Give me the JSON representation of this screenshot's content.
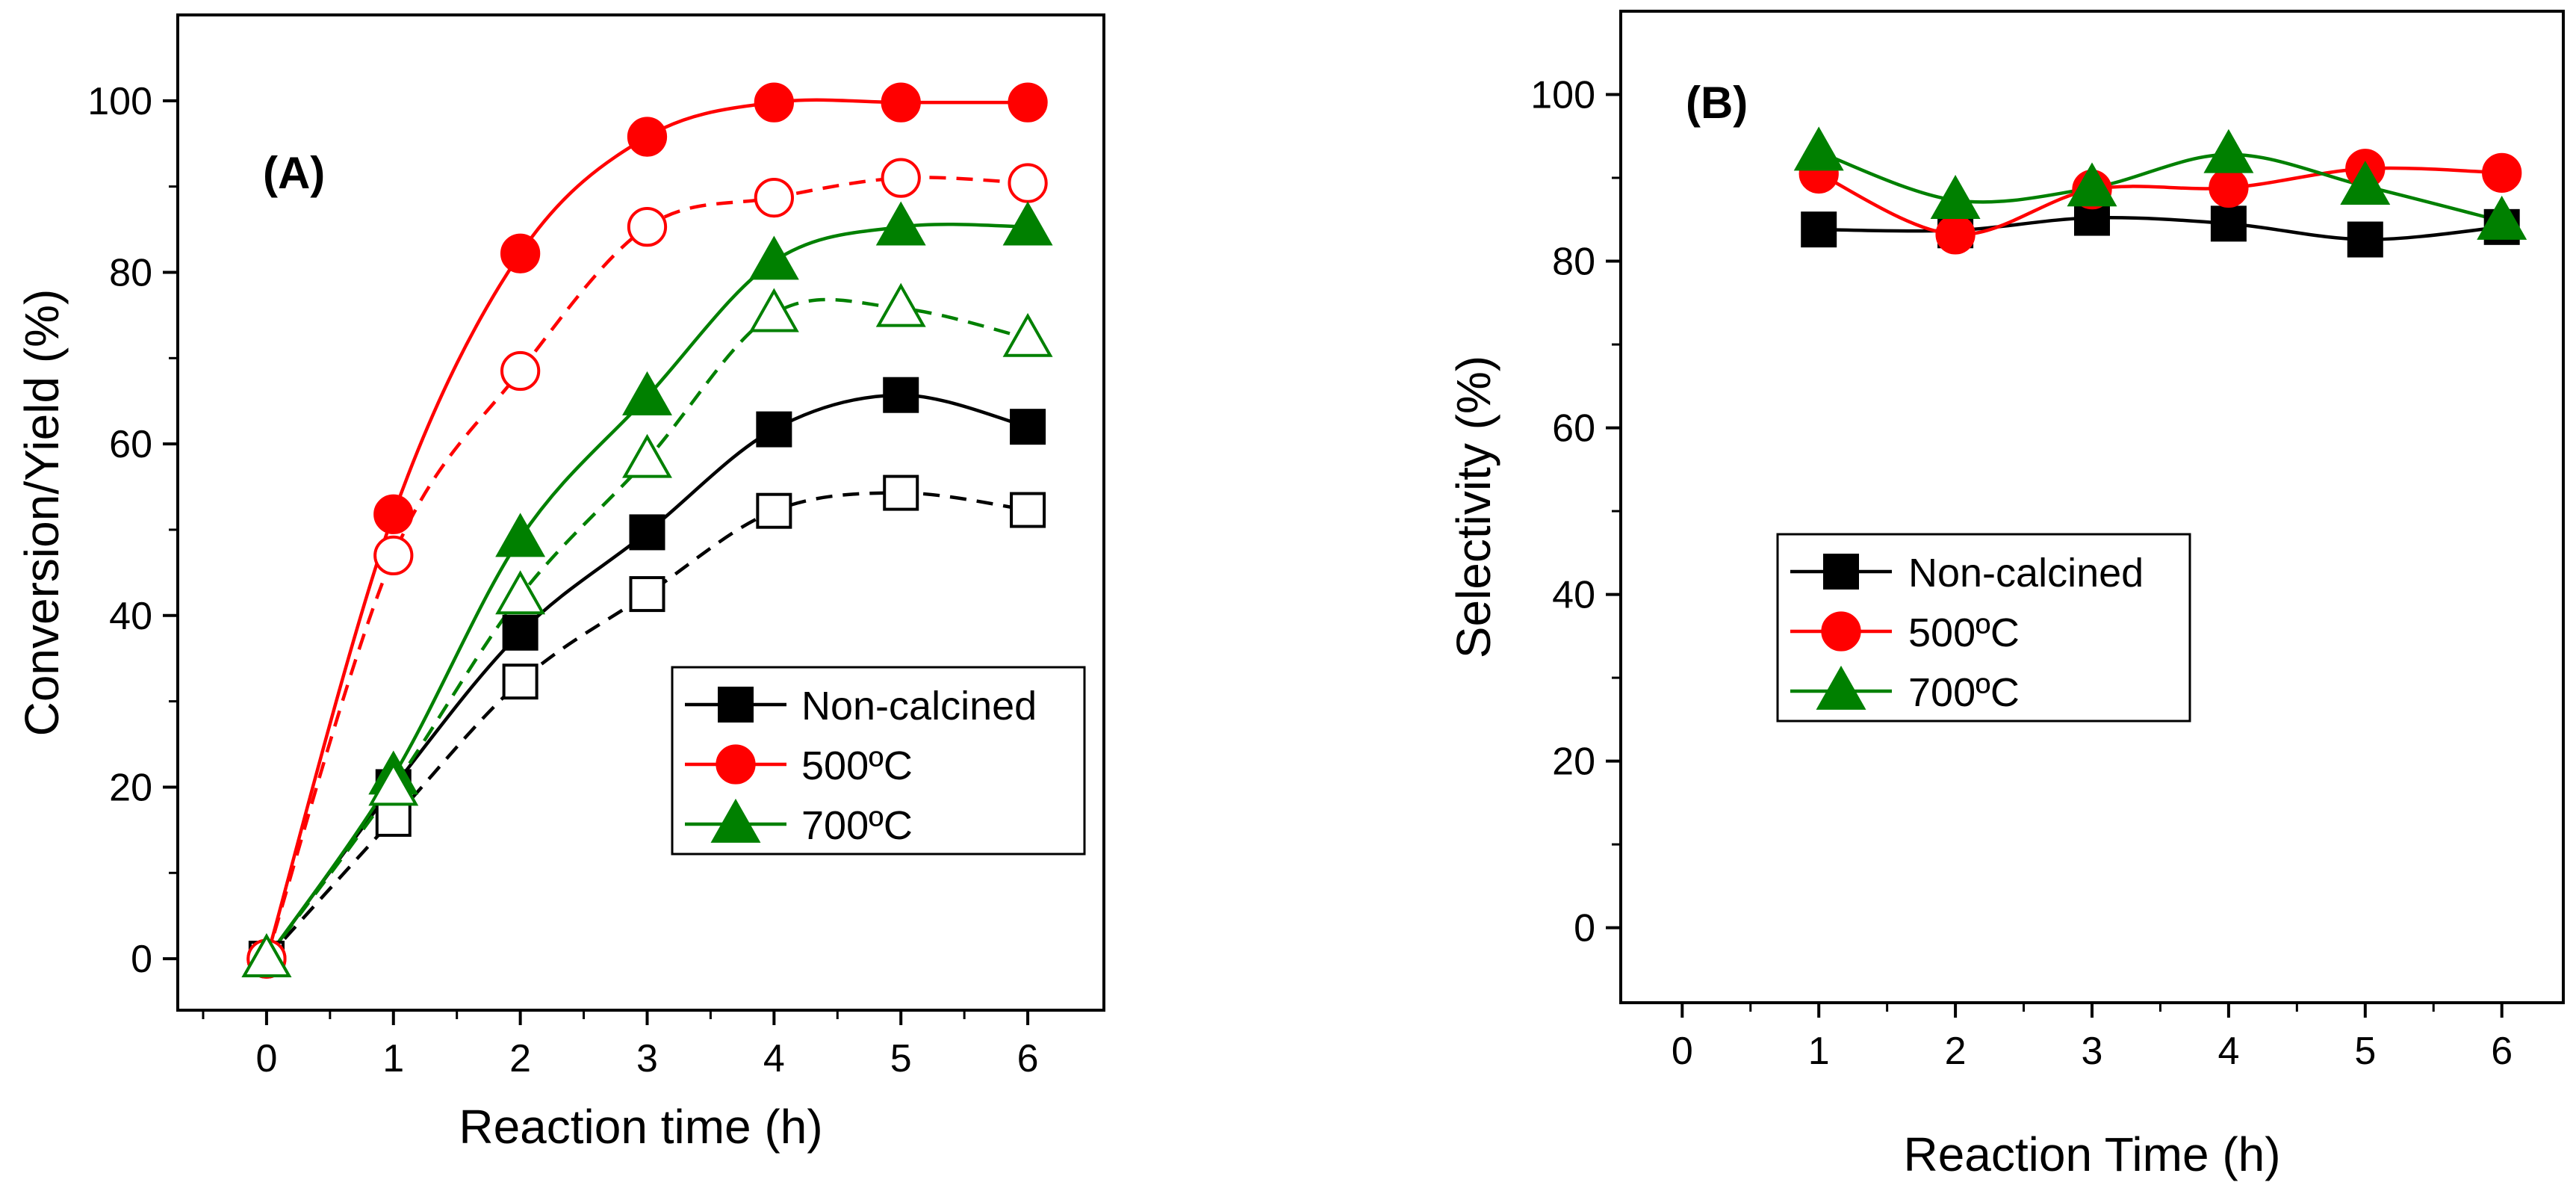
{
  "colors": {
    "non_calcined": "#000000",
    "c500": "#ff0000",
    "c700": "#008000"
  },
  "chart_data": [
    {
      "type": "line",
      "panel_label": "(A)",
      "xlabel": "Reaction time (h)",
      "ylabel": "Conversion/Yield (%)",
      "xlim": [
        -0.7,
        6.6
      ],
      "ylim": [
        -6,
        110
      ],
      "xticks": [
        0,
        1,
        2,
        3,
        4,
        5,
        6
      ],
      "yticks": [
        0,
        20,
        40,
        60,
        80,
        100
      ],
      "legend_position": "bottom-right",
      "legend": [
        {
          "label": "Non-calcined",
          "color": "#000000",
          "marker": "square"
        },
        {
          "label": "500ºC",
          "color": "#ff0000",
          "marker": "circle"
        },
        {
          "label": "700ºC",
          "color": "#008000",
          "marker": "triangle"
        }
      ],
      "series": [
        {
          "name": "Non-calcined conversion",
          "color": "#000000",
          "marker": "square",
          "filled": true,
          "dashed": false,
          "x": [
            0,
            1,
            2,
            3,
            4,
            5,
            6
          ],
          "values": [
            0,
            20,
            38,
            49.7,
            61.7,
            65.7,
            62
          ]
        },
        {
          "name": "Non-calcined yield",
          "color": "#000000",
          "marker": "square",
          "filled": false,
          "dashed": true,
          "x": [
            0,
            1,
            2,
            3,
            4,
            5,
            6
          ],
          "values": [
            0,
            16.3,
            32.3,
            42.5,
            52.2,
            54.3,
            52.3
          ]
        },
        {
          "name": "500ºC conversion",
          "color": "#ff0000",
          "marker": "circle",
          "filled": true,
          "dashed": false,
          "x": [
            0,
            1,
            2,
            3,
            4,
            5,
            6
          ],
          "values": [
            0,
            51.8,
            82.2,
            95.8,
            99.8,
            99.8,
            99.8
          ]
        },
        {
          "name": "500ºC yield",
          "color": "#ff0000",
          "marker": "circle",
          "filled": false,
          "dashed": true,
          "x": [
            0,
            1,
            2,
            3,
            4,
            5,
            6
          ],
          "values": [
            0,
            47,
            68.5,
            85.3,
            88.7,
            91,
            90.4
          ]
        },
        {
          "name": "700ºC conversion",
          "color": "#008000",
          "marker": "triangle",
          "filled": true,
          "dashed": false,
          "x": [
            0,
            1,
            2,
            3,
            4,
            5,
            6
          ],
          "values": [
            0,
            21.3,
            49,
            65.5,
            81.3,
            85.3,
            85.3
          ]
        },
        {
          "name": "700ºC yield",
          "color": "#008000",
          "marker": "triangle",
          "filled": false,
          "dashed": true,
          "x": [
            0,
            1,
            2,
            3,
            4,
            5,
            6
          ],
          "values": [
            0,
            20,
            42.3,
            58.2,
            75.2,
            75.8,
            72.3
          ]
        }
      ]
    },
    {
      "type": "line",
      "panel_label": "(B)",
      "xlabel": "Reaction Time (h)",
      "ylabel": "Selectivity (%)",
      "xlim": [
        -0.45,
        6.45
      ],
      "ylim": [
        -9,
        110
      ],
      "xticks": [
        0,
        1,
        2,
        3,
        4,
        5,
        6
      ],
      "yticks": [
        0,
        20,
        40,
        60,
        80,
        100
      ],
      "legend_position": "center-left",
      "legend": [
        {
          "label": "Non-calcined",
          "color": "#000000",
          "marker": "square"
        },
        {
          "label": "500ºC",
          "color": "#ff0000",
          "marker": "circle"
        },
        {
          "label": "700ºC",
          "color": "#008000",
          "marker": "triangle"
        }
      ],
      "series": [
        {
          "name": "Non-calcined",
          "color": "#000000",
          "marker": "square",
          "filled": true,
          "dashed": false,
          "x": [
            1,
            2,
            3,
            4,
            5,
            6
          ],
          "values": [
            83.8,
            83.7,
            85.2,
            84.5,
            82.6,
            84.1
          ]
        },
        {
          "name": "500ºC",
          "color": "#ff0000",
          "marker": "circle",
          "filled": true,
          "dashed": false,
          "x": [
            1,
            2,
            3,
            4,
            5,
            6
          ],
          "values": [
            90.5,
            83.2,
            88.6,
            88.8,
            91.1,
            90.6
          ]
        },
        {
          "name": "700ºC",
          "color": "#008000",
          "marker": "triangle",
          "filled": true,
          "dashed": false,
          "x": [
            1,
            2,
            3,
            4,
            5,
            6
          ],
          "values": [
            93.1,
            87.3,
            88.8,
            92.8,
            89,
            84.8
          ]
        }
      ]
    }
  ]
}
